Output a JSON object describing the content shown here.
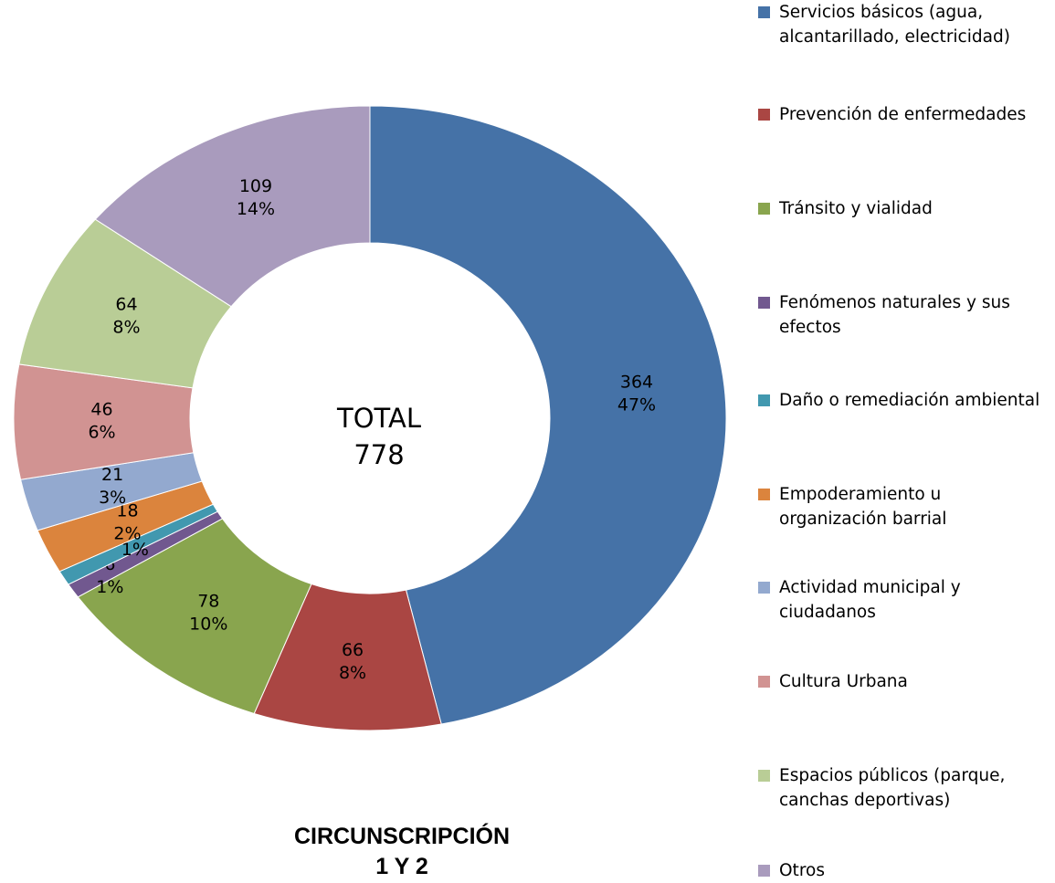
{
  "chart_data": {
    "type": "donut",
    "title": [
      "CIRCUNSCRIPCIÓN",
      "1 Y 2"
    ],
    "center_label": "TOTAL",
    "total": 778,
    "categories": [
      "Servicios básicos (agua, alcantarillado, electricidad)",
      "Prevención de enfermedades",
      "Tránsito y vialidad",
      "Fenómenos naturales y sus efectos",
      "Daño o remediación ambiental",
      "Empoderamiento u organización barrial",
      "Actividad municipal y ciudadanos",
      "Cultura Urbana",
      "Espacios públicos (parque, canchas deportivas)",
      "Otros"
    ],
    "values": [
      364,
      66,
      78,
      6,
      6,
      18,
      21,
      46,
      64,
      109
    ],
    "percent_labels": [
      "47%",
      "8%",
      "10%",
      "1%",
      "1%",
      "2%",
      "3%",
      "6%",
      "8%",
      "14%"
    ],
    "colors": [
      "#4572a7",
      "#aa4643",
      "#89a54e",
      "#71588f",
      "#4198af",
      "#db843d",
      "#93a9cf",
      "#d19392",
      "#b9cd96",
      "#a99bbd"
    ],
    "legend": "right"
  }
}
